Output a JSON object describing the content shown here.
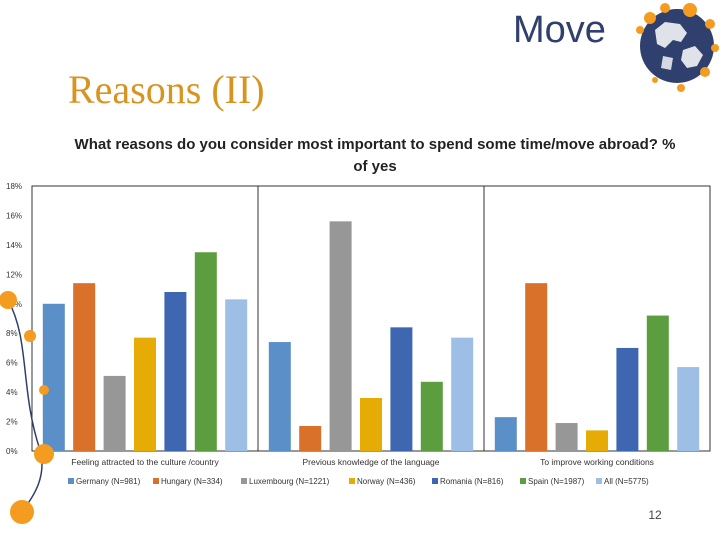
{
  "header": {
    "logo_text": "Move",
    "slide_title": "Reasons (II)"
  },
  "page_number": "12",
  "colors": {
    "title": "#d9941f",
    "logo_text": "#2f3f6e",
    "logo_accent": "#f39c1f"
  },
  "chart_data": {
    "type": "bar",
    "title": "What reasons do you consider most important to spend some time/move abroad?  % of yes",
    "categories": [
      "Feeling attracted to the culture /country",
      "Previous knowledge of the language",
      "To improve working conditions"
    ],
    "ylim": [
      0,
      18
    ],
    "yticks": [
      0,
      2,
      4,
      6,
      8,
      10,
      12,
      14,
      16,
      18
    ],
    "ytick_labels": [
      "0%",
      "2%",
      "4%",
      "6%",
      "8%",
      "10%",
      "12%",
      "14%",
      "16%",
      "18%"
    ],
    "legend_position": "bottom",
    "series": [
      {
        "name": "Germany (N=981)",
        "color": "#5b8fc7",
        "values": [
          10.0,
          7.4,
          2.3
        ]
      },
      {
        "name": "Hungary (N=334)",
        "color": "#d9712a",
        "values": [
          11.4,
          1.7,
          11.4
        ]
      },
      {
        "name": "Luxembourg (N=1221)",
        "color": "#979797",
        "values": [
          5.1,
          15.6,
          1.9
        ]
      },
      {
        "name": "Norway (N=436)",
        "color": "#e6ac05",
        "values": [
          7.7,
          3.6,
          1.4
        ]
      },
      {
        "name": "Romania (N=816)",
        "color": "#3f67b1",
        "values": [
          10.8,
          8.4,
          7.0
        ]
      },
      {
        "name": "Spain (N=1987)",
        "color": "#5c9e3f",
        "values": [
          13.5,
          4.7,
          9.2
        ]
      },
      {
        "name": "All (N=5775)",
        "color": "#9dbfe5",
        "values": [
          10.3,
          7.7,
          5.7
        ]
      }
    ]
  }
}
